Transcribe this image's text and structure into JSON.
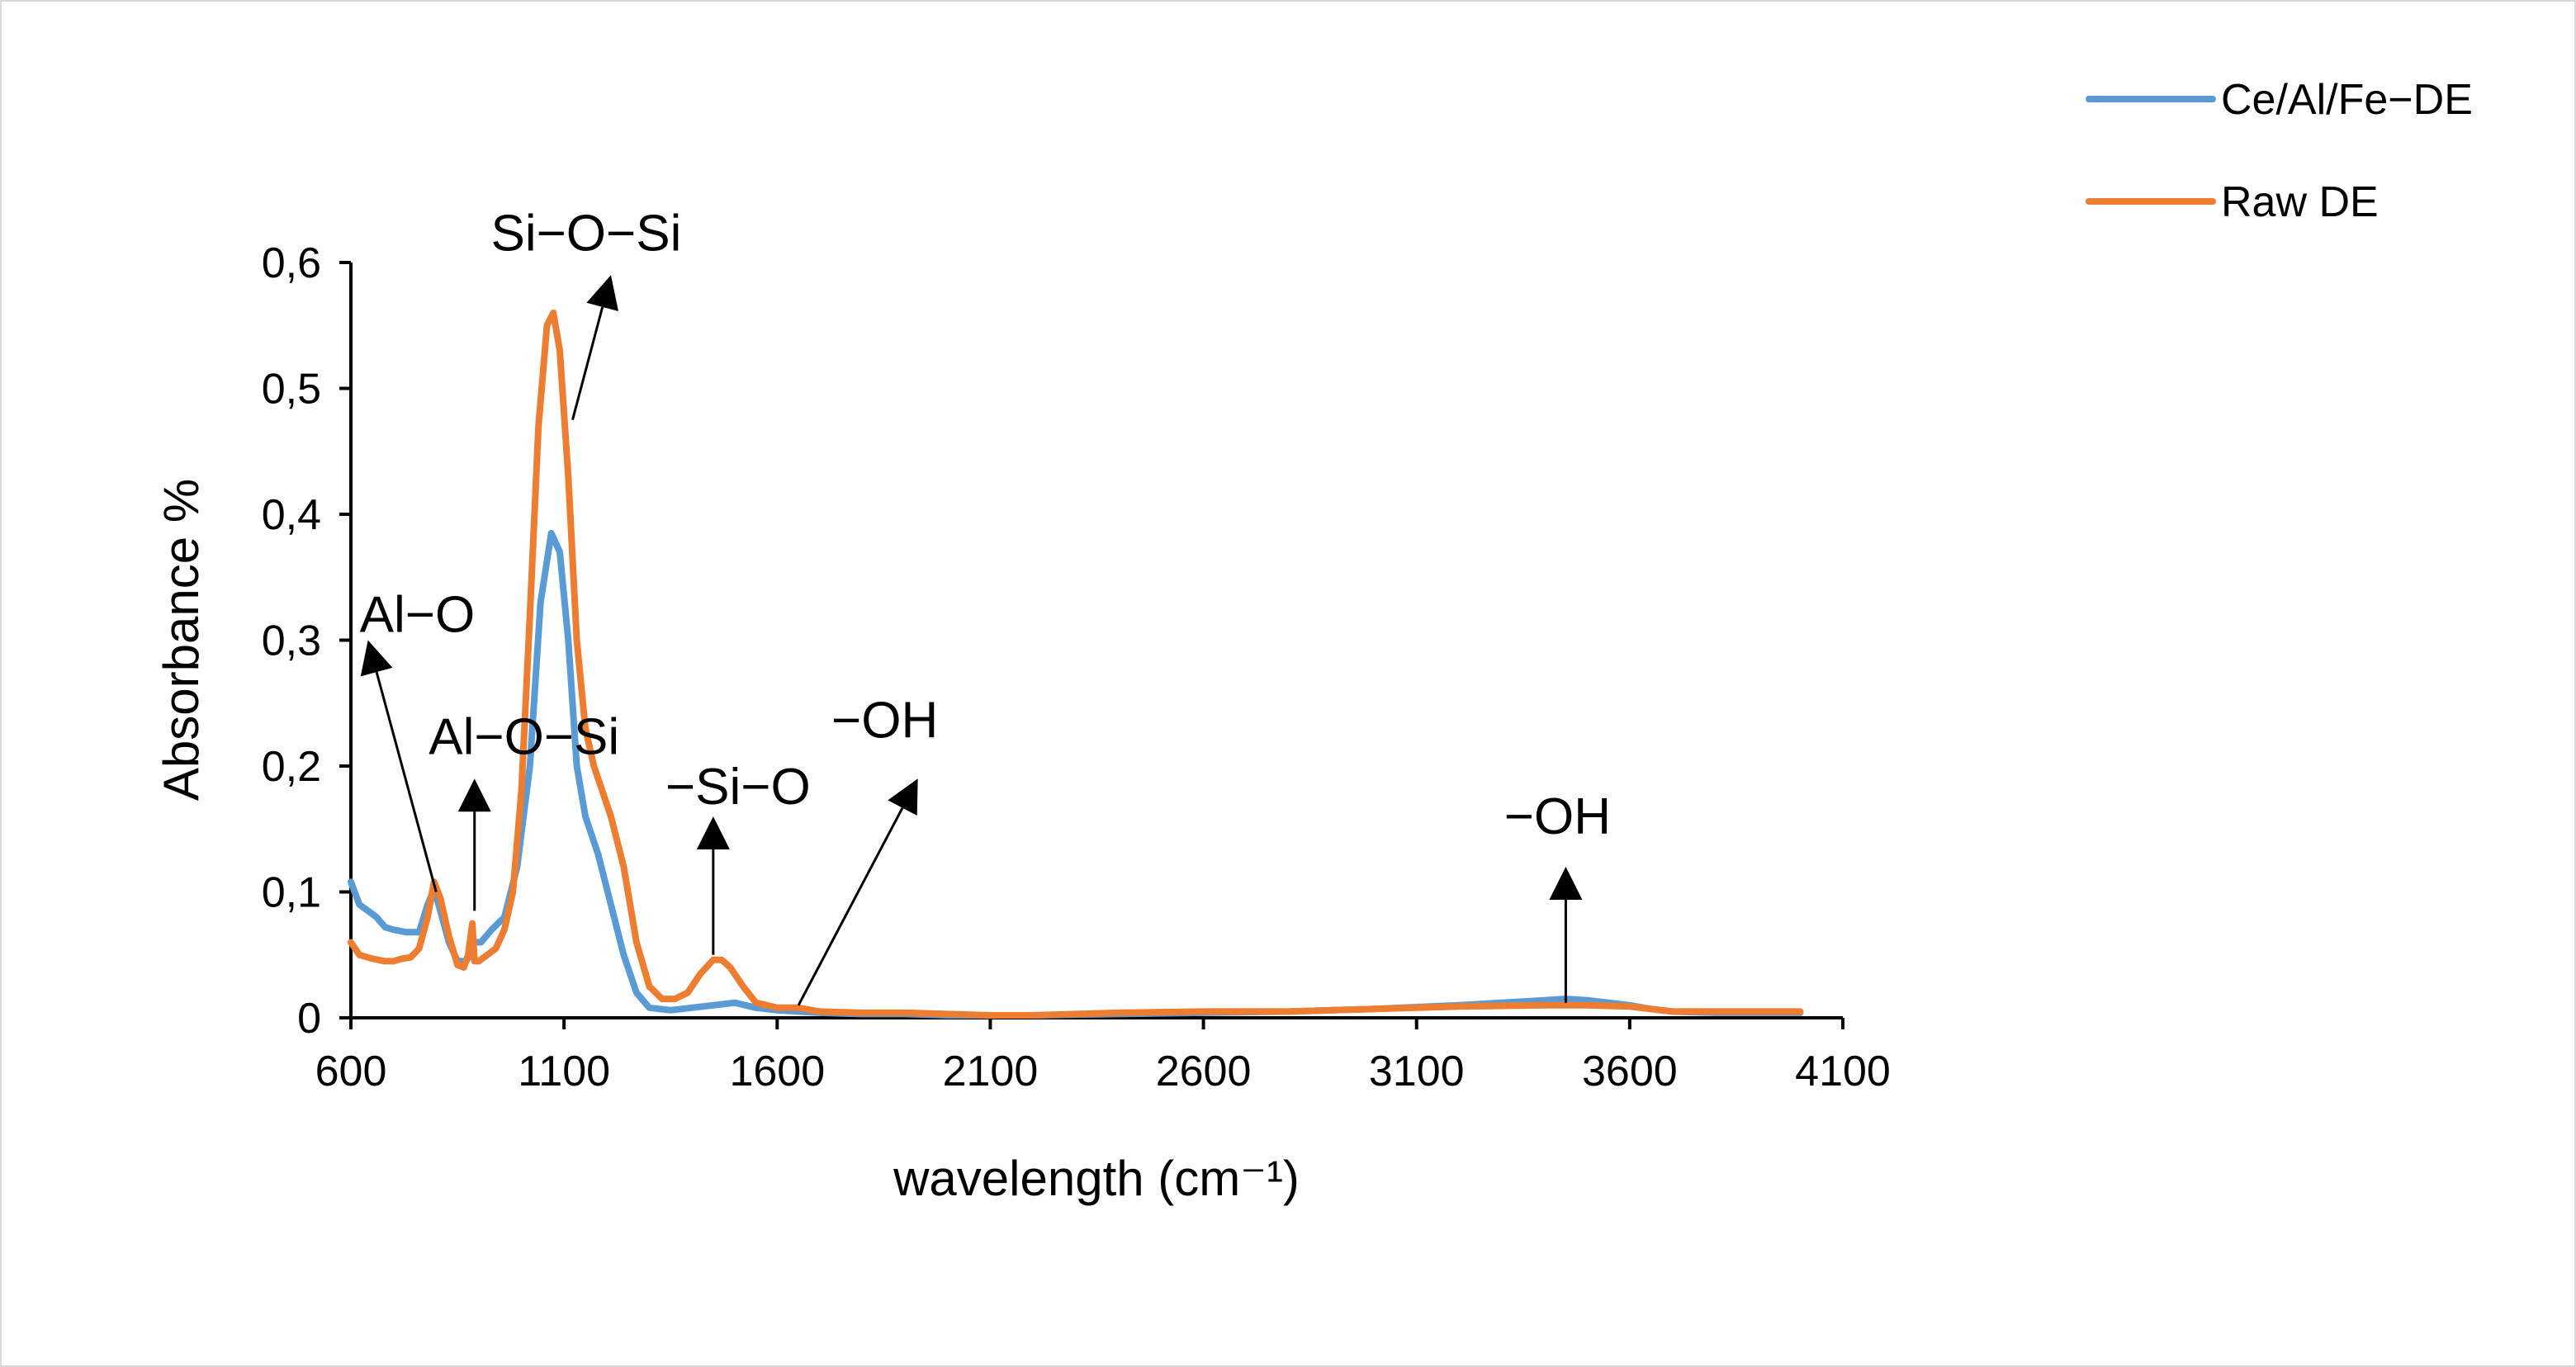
{
  "chart_data": {
    "type": "line",
    "xlabel": "wavelength (cm⁻¹)",
    "ylabel": "Absorbance %",
    "xlim": [
      600,
      4100
    ],
    "ylim": [
      0,
      0.6
    ],
    "x_ticks": [
      600,
      1100,
      1600,
      2100,
      2600,
      3100,
      3600,
      4100
    ],
    "y_ticks": [
      0,
      0.1,
      0.2,
      0.3,
      0.4,
      0.5,
      0.6
    ],
    "x_tick_labels": [
      "600",
      "1100",
      "1600",
      "2100",
      "2600",
      "3100",
      "3600",
      "4100"
    ],
    "y_tick_labels": [
      "0",
      "0,1",
      "0,2",
      "0,3",
      "0,4",
      "0,5",
      "0,6"
    ],
    "grid": false,
    "legend_position": "top-right",
    "series": [
      {
        "name": "Ce/Al/Fe−DE",
        "color": "#5b9bd5",
        "points": [
          [
            600,
            0.108
          ],
          [
            620,
            0.09
          ],
          [
            640,
            0.085
          ],
          [
            660,
            0.08
          ],
          [
            680,
            0.072
          ],
          [
            700,
            0.07
          ],
          [
            730,
            0.068
          ],
          [
            760,
            0.068
          ],
          [
            780,
            0.09
          ],
          [
            795,
            0.102
          ],
          [
            810,
            0.085
          ],
          [
            830,
            0.06
          ],
          [
            850,
            0.045
          ],
          [
            870,
            0.045
          ],
          [
            880,
            0.05
          ],
          [
            890,
            0.06
          ],
          [
            905,
            0.06
          ],
          [
            930,
            0.07
          ],
          [
            960,
            0.08
          ],
          [
            990,
            0.12
          ],
          [
            1020,
            0.2
          ],
          [
            1045,
            0.33
          ],
          [
            1070,
            0.385
          ],
          [
            1090,
            0.37
          ],
          [
            1110,
            0.3
          ],
          [
            1130,
            0.2
          ],
          [
            1150,
            0.16
          ],
          [
            1180,
            0.13
          ],
          [
            1210,
            0.09
          ],
          [
            1240,
            0.05
          ],
          [
            1270,
            0.02
          ],
          [
            1300,
            0.008
          ],
          [
            1350,
            0.006
          ],
          [
            1400,
            0.008
          ],
          [
            1450,
            0.01
          ],
          [
            1500,
            0.012
          ],
          [
            1550,
            0.008
          ],
          [
            1600,
            0.006
          ],
          [
            1650,
            0.005
          ],
          [
            1700,
            0.004
          ],
          [
            1800,
            0.003
          ],
          [
            1900,
            0.003
          ],
          [
            2000,
            0.002
          ],
          [
            2100,
            0.002
          ],
          [
            2200,
            0.002
          ],
          [
            2400,
            0.003
          ],
          [
            2600,
            0.004
          ],
          [
            2800,
            0.005
          ],
          [
            3000,
            0.007
          ],
          [
            3200,
            0.01
          ],
          [
            3300,
            0.012
          ],
          [
            3400,
            0.014
          ],
          [
            3450,
            0.015
          ],
          [
            3500,
            0.014
          ],
          [
            3550,
            0.012
          ],
          [
            3600,
            0.01
          ],
          [
            3650,
            0.007
          ],
          [
            3700,
            0.005
          ],
          [
            3800,
            0.004
          ],
          [
            3900,
            0.004
          ],
          [
            4000,
            0.004
          ]
        ]
      },
      {
        "name": "Raw DE",
        "color": "#ed7d31",
        "points": [
          [
            600,
            0.06
          ],
          [
            620,
            0.05
          ],
          [
            650,
            0.047
          ],
          [
            680,
            0.045
          ],
          [
            700,
            0.045
          ],
          [
            720,
            0.047
          ],
          [
            740,
            0.048
          ],
          [
            760,
            0.055
          ],
          [
            780,
            0.08
          ],
          [
            795,
            0.108
          ],
          [
            810,
            0.095
          ],
          [
            830,
            0.065
          ],
          [
            850,
            0.042
          ],
          [
            865,
            0.04
          ],
          [
            875,
            0.05
          ],
          [
            885,
            0.075
          ],
          [
            890,
            0.045
          ],
          [
            900,
            0.045
          ],
          [
            920,
            0.05
          ],
          [
            940,
            0.055
          ],
          [
            960,
            0.07
          ],
          [
            980,
            0.1
          ],
          [
            1000,
            0.18
          ],
          [
            1020,
            0.32
          ],
          [
            1040,
            0.47
          ],
          [
            1060,
            0.55
          ],
          [
            1075,
            0.56
          ],
          [
            1090,
            0.53
          ],
          [
            1110,
            0.43
          ],
          [
            1130,
            0.3
          ],
          [
            1150,
            0.23
          ],
          [
            1170,
            0.2
          ],
          [
            1190,
            0.18
          ],
          [
            1210,
            0.16
          ],
          [
            1240,
            0.12
          ],
          [
            1270,
            0.06
          ],
          [
            1300,
            0.025
          ],
          [
            1330,
            0.015
          ],
          [
            1360,
            0.015
          ],
          [
            1390,
            0.02
          ],
          [
            1420,
            0.035
          ],
          [
            1450,
            0.046
          ],
          [
            1470,
            0.046
          ],
          [
            1490,
            0.04
          ],
          [
            1520,
            0.025
          ],
          [
            1550,
            0.012
          ],
          [
            1600,
            0.008
          ],
          [
            1650,
            0.008
          ],
          [
            1700,
            0.005
          ],
          [
            1800,
            0.004
          ],
          [
            1900,
            0.004
          ],
          [
            2000,
            0.003
          ],
          [
            2100,
            0.002
          ],
          [
            2200,
            0.002
          ],
          [
            2400,
            0.004
          ],
          [
            2600,
            0.005
          ],
          [
            2800,
            0.005
          ],
          [
            3000,
            0.007
          ],
          [
            3200,
            0.009
          ],
          [
            3400,
            0.01
          ],
          [
            3500,
            0.01
          ],
          [
            3600,
            0.009
          ],
          [
            3700,
            0.005
          ],
          [
            3800,
            0.005
          ],
          [
            3900,
            0.005
          ],
          [
            4000,
            0.005
          ]
        ]
      }
    ],
    "annotations": [
      {
        "label": "Si−O−Si",
        "tip": [
          1210,
          0.59
        ],
        "tail": [
          1120,
          0.475
        ]
      },
      {
        "label": "Al−O",
        "tip": [
          640,
          0.3
        ],
        "tail": [
          800,
          0.1
        ]
      },
      {
        "label": "Al−O−Si",
        "tip": [
          890,
          0.19
        ],
        "tail": [
          890,
          0.085
        ]
      },
      {
        "label": "−Si−O",
        "tip": [
          1450,
          0.16
        ],
        "tail": [
          1450,
          0.05
        ]
      },
      {
        "label": "−OH",
        "tip": [
          1930,
          0.19
        ],
        "tail": [
          1650,
          0.01
        ]
      },
      {
        "label": "−OH",
        "tip": [
          3450,
          0.12
        ],
        "tail": [
          3450,
          0.012
        ]
      }
    ]
  }
}
